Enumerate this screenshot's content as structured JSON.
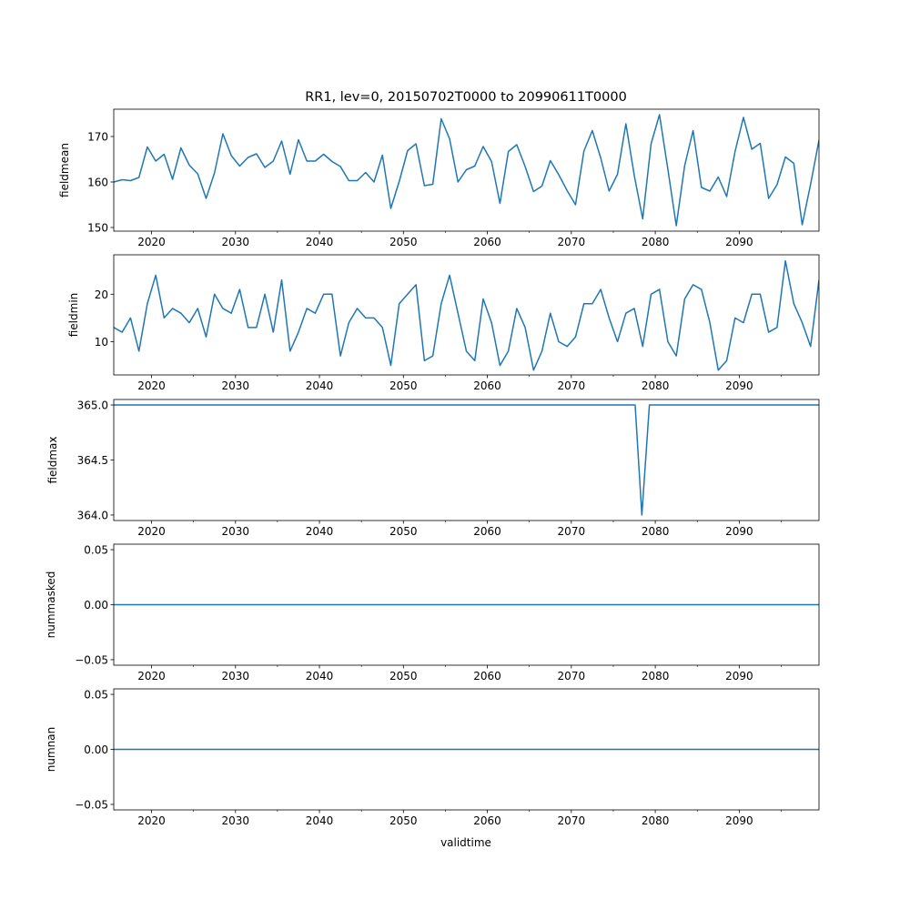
{
  "title": "RR1, lev=0, 20150702T0000 to 20990611T0000",
  "xlabel": "validtime",
  "line_color": "#1f77b4",
  "chart_data": [
    {
      "type": "line",
      "ylabel": "fieldmean",
      "xlim": [
        2015.5,
        2099.5
      ],
      "ylim": [
        149.2,
        176
      ],
      "yticks": [
        150,
        160,
        170
      ],
      "ytick_labels": [
        "150",
        "160",
        "170"
      ],
      "xticks": [
        2020,
        2030,
        2040,
        2050,
        2060,
        2070,
        2080,
        2090
      ],
      "xtick_labels": [
        "2020",
        "2030",
        "2040",
        "2050",
        "2060",
        "2070",
        "2080",
        "2090"
      ],
      "x": [
        2015.5,
        2016.5,
        2017.5,
        2018.5,
        2019.5,
        2020.5,
        2021.5,
        2022.5,
        2023.5,
        2024.5,
        2025.5,
        2026.5,
        2027.5,
        2028.5,
        2029.5,
        2030.5,
        2031.5,
        2032.5,
        2033.5,
        2034.5,
        2035.5,
        2036.5,
        2037.5,
        2038.5,
        2039.5,
        2040.5,
        2041.5,
        2042.5,
        2043.5,
        2044.5,
        2045.5,
        2046.5,
        2047.5,
        2048.5,
        2049.5,
        2050.5,
        2051.5,
        2052.5,
        2053.5,
        2054.5,
        2055.5,
        2056.5,
        2057.5,
        2058.5,
        2059.5,
        2060.5,
        2061.5,
        2062.5,
        2063.5,
        2064.5,
        2065.5,
        2066.5,
        2067.5,
        2068.5,
        2069.5,
        2070.5,
        2071.5,
        2072.5,
        2073.5,
        2074.5,
        2075.5,
        2076.5,
        2077.5,
        2078.5,
        2079.5,
        2080.5,
        2081.5,
        2082.5,
        2083.5,
        2084.5,
        2085.5,
        2086.5,
        2087.5,
        2088.5,
        2089.5,
        2090.5,
        2091.5,
        2092.5,
        2093.5,
        2094.5,
        2095.5,
        2096.5,
        2097.5,
        2098.5,
        2099.5
      ],
      "values": [
        160.0,
        160.5,
        160.3,
        161.0,
        167.7,
        164.6,
        166.1,
        160.6,
        167.5,
        163.7,
        161.8,
        156.4,
        162.0,
        170.6,
        165.8,
        163.5,
        165.4,
        166.2,
        163.2,
        164.6,
        169.0,
        161.7,
        169.3,
        164.6,
        164.6,
        166.1,
        164.5,
        163.4,
        160.3,
        160.3,
        162.1,
        160.0,
        165.9,
        154.2,
        160.1,
        166.9,
        168.4,
        159.2,
        159.5,
        173.9,
        169.5,
        160.0,
        162.7,
        163.5,
        167.8,
        164.5,
        155.3,
        166.7,
        168.2,
        163.4,
        157.9,
        159.1,
        164.7,
        161.6,
        158.1,
        155.0,
        166.8,
        171.3,
        165.3,
        158.0,
        161.7,
        172.8,
        161.4,
        151.9,
        168.4,
        174.8,
        162.8,
        150.4,
        163.6,
        171.3,
        158.8,
        158.0,
        161.1,
        156.8,
        166.7,
        174.2,
        167.2,
        168.5,
        156.4,
        159.4,
        165.5,
        164.1,
        150.6,
        159.5,
        169.2
      ]
    },
    {
      "type": "line",
      "ylabel": "fieldmin",
      "xlim": [
        2015.5,
        2099.5
      ],
      "ylim": [
        3.0,
        28.3
      ],
      "yticks": [
        10,
        20
      ],
      "ytick_labels": [
        "10",
        "20"
      ],
      "xticks": [
        2020,
        2030,
        2040,
        2050,
        2060,
        2070,
        2080,
        2090
      ],
      "xtick_labels": [
        "2020",
        "2030",
        "2040",
        "2050",
        "2060",
        "2070",
        "2080",
        "2090"
      ],
      "x": [
        2015.5,
        2016.5,
        2017.5,
        2018.5,
        2019.5,
        2020.5,
        2021.5,
        2022.5,
        2023.5,
        2024.5,
        2025.5,
        2026.5,
        2027.5,
        2028.5,
        2029.5,
        2030.5,
        2031.5,
        2032.5,
        2033.5,
        2034.5,
        2035.5,
        2036.5,
        2037.5,
        2038.5,
        2039.5,
        2040.5,
        2041.5,
        2042.5,
        2043.5,
        2044.5,
        2045.5,
        2046.5,
        2047.5,
        2048.5,
        2049.5,
        2050.5,
        2051.5,
        2052.5,
        2053.5,
        2054.5,
        2055.5,
        2056.5,
        2057.5,
        2058.5,
        2059.5,
        2060.5,
        2061.5,
        2062.5,
        2063.5,
        2064.5,
        2065.5,
        2066.5,
        2067.5,
        2068.5,
        2069.5,
        2070.5,
        2071.5,
        2072.5,
        2073.5,
        2074.5,
        2075.5,
        2076.5,
        2077.5,
        2078.5,
        2079.5,
        2080.5,
        2081.5,
        2082.5,
        2083.5,
        2084.5,
        2085.5,
        2086.5,
        2087.5,
        2088.5,
        2089.5,
        2090.5,
        2091.5,
        2092.5,
        2093.5,
        2094.5,
        2095.5,
        2096.5,
        2097.5,
        2098.5,
        2099.5
      ],
      "values": [
        13,
        12,
        15,
        8,
        18,
        24,
        15,
        17,
        16,
        14,
        17,
        11,
        20,
        17,
        16,
        21,
        13,
        13,
        20,
        12,
        23,
        8,
        12,
        17,
        16,
        20,
        20,
        7,
        14,
        17,
        15,
        15,
        13,
        5,
        18,
        20,
        22,
        6,
        7,
        18,
        24,
        16,
        8,
        6,
        19,
        14,
        5,
        8,
        17,
        13,
        4,
        8,
        16,
        10,
        9,
        11,
        18,
        18,
        21,
        15,
        10,
        16,
        17,
        9,
        20,
        21,
        10,
        7,
        19,
        22,
        21,
        14,
        4,
        6,
        15,
        14,
        20,
        20,
        12,
        13,
        27,
        18,
        14,
        9,
        23
      ]
    },
    {
      "type": "line",
      "ylabel": "fieldmax",
      "xlim": [
        2015.5,
        2099.5
      ],
      "ylim": [
        363.95,
        365.05
      ],
      "yticks": [
        364.0,
        364.5,
        365.0
      ],
      "ytick_labels": [
        "364.0",
        "364.5",
        "365.0"
      ],
      "xticks": [
        2020,
        2030,
        2040,
        2050,
        2060,
        2070,
        2080,
        2090
      ],
      "xtick_labels": [
        "2020",
        "2030",
        "2040",
        "2050",
        "2060",
        "2070",
        "2080",
        "2090"
      ],
      "x": [
        2015.5,
        2077.6,
        2078.4,
        2079.3,
        2099.5
      ],
      "values": [
        365.0,
        365.0,
        364.0,
        365.0,
        365.0
      ]
    },
    {
      "type": "line",
      "ylabel": "nummasked",
      "xlim": [
        2015.5,
        2099.5
      ],
      "ylim": [
        -0.055,
        0.055
      ],
      "yticks": [
        -0.05,
        0.0,
        0.05
      ],
      "ytick_labels": [
        "−0.05",
        "0.00",
        "0.05"
      ],
      "xticks": [
        2020,
        2030,
        2040,
        2050,
        2060,
        2070,
        2080,
        2090
      ],
      "xtick_labels": [
        "2020",
        "2030",
        "2040",
        "2050",
        "2060",
        "2070",
        "2080",
        "2090"
      ],
      "x": [
        2015.5,
        2099.5
      ],
      "values": [
        0,
        0
      ]
    },
    {
      "type": "line",
      "ylabel": "numnan",
      "xlim": [
        2015.5,
        2099.5
      ],
      "ylim": [
        -0.055,
        0.055
      ],
      "yticks": [
        -0.05,
        0.0,
        0.05
      ],
      "ytick_labels": [
        "−0.05",
        "0.00",
        "0.05"
      ],
      "xticks": [
        2020,
        2030,
        2040,
        2050,
        2060,
        2070,
        2080,
        2090
      ],
      "xtick_labels": [
        "2020",
        "2030",
        "2040",
        "2050",
        "2060",
        "2070",
        "2080",
        "2090"
      ],
      "x": [
        2015.5,
        2099.5
      ],
      "values": [
        0,
        0
      ]
    }
  ]
}
